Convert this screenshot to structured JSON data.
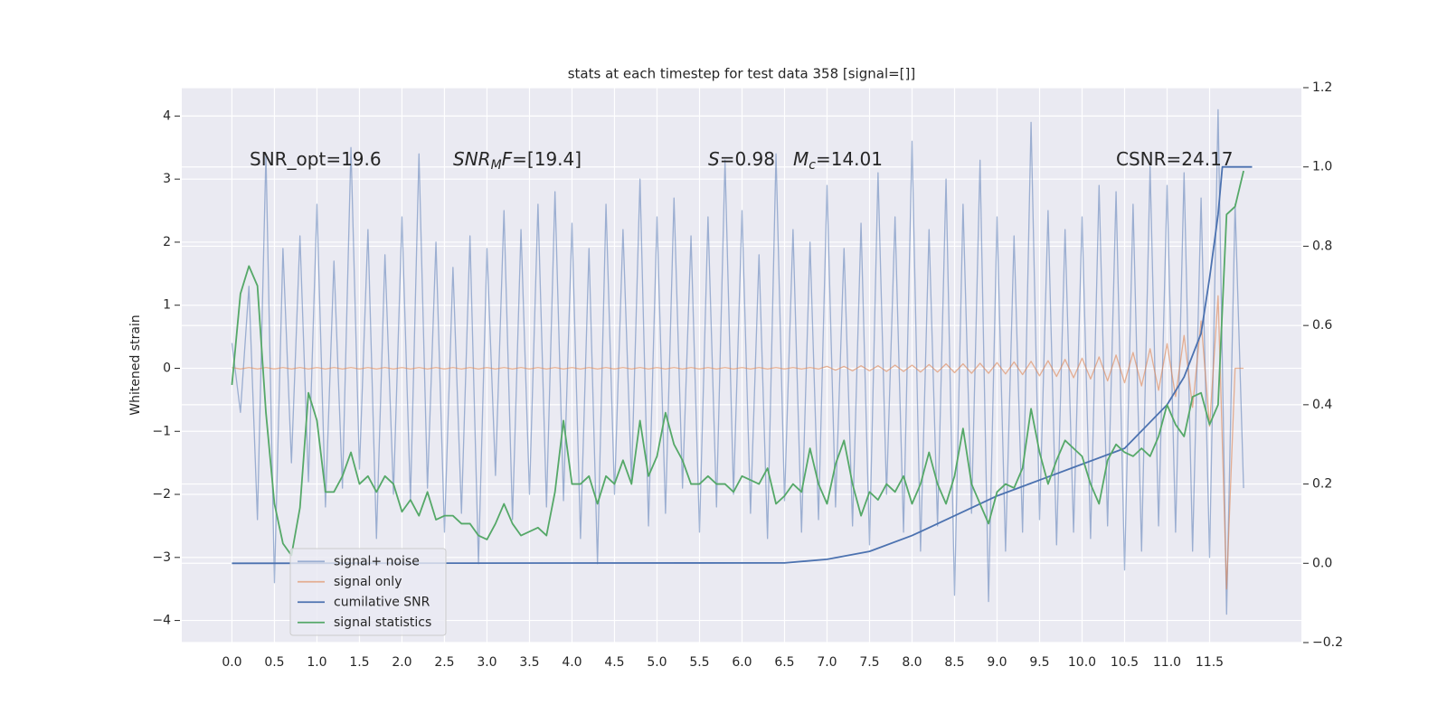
{
  "chart_data": {
    "type": "line",
    "title": "stats at each timestep for test data 358 [signal=[]]",
    "y_label": "Whitened strain",
    "xlim": [
      -0.59,
      12.58
    ],
    "ylim": [
      -4.35,
      4.45
    ],
    "y2lim": [
      -0.2,
      1.2
    ],
    "xticks": [
      {
        "value": 0,
        "label": "0.0"
      },
      0.5,
      {
        "value": 1,
        "label": "1.0"
      },
      1.5,
      {
        "value": 2,
        "label": "2.0"
      },
      2.5,
      {
        "value": 3,
        "label": "3.0"
      },
      3.5,
      {
        "value": 4,
        "label": "4.0"
      },
      4.5,
      {
        "value": 5,
        "label": "5.0"
      },
      5.5,
      {
        "value": 6,
        "label": "6.0"
      },
      6.5,
      {
        "value": 7,
        "label": "7.0"
      },
      7.5,
      {
        "value": 8,
        "label": "8.0"
      },
      8.5,
      {
        "value": 9,
        "label": "9.0"
      },
      9.5,
      {
        "value": 10,
        "label": "10.0"
      },
      10.5,
      {
        "value": 11,
        "label": "11.0"
      },
      11.5
    ],
    "yticks": [
      {
        "value": -4,
        "label": "−4"
      },
      {
        "value": -3,
        "label": "−3"
      },
      {
        "value": -2,
        "label": "−2"
      },
      {
        "value": -1,
        "label": "−1"
      },
      0,
      1,
      2,
      3,
      4
    ],
    "y2ticks": [
      {
        "value": -0.2,
        "label": "−0.2"
      },
      {
        "value": 0,
        "label": "0.0"
      },
      0.2,
      0.4,
      0.6,
      0.8,
      {
        "value": 1,
        "label": "1.0"
      },
      1.2
    ],
    "grid": true,
    "background": "#eaeaf2",
    "legend_loc": "lower left",
    "x": [
      0.0,
      0.1,
      0.2,
      0.3,
      0.4,
      0.5,
      0.6,
      0.7,
      0.8,
      0.9,
      1.0,
      1.1,
      1.2,
      1.3,
      1.4,
      1.5,
      1.6,
      1.7,
      1.8,
      1.9,
      2.0,
      2.1,
      2.2,
      2.3,
      2.4,
      2.5,
      2.6,
      2.7,
      2.8,
      2.9,
      3.0,
      3.1,
      3.2,
      3.3,
      3.4,
      3.5,
      3.6,
      3.7,
      3.8,
      3.9,
      4.0,
      4.1,
      4.2,
      4.3,
      4.4,
      4.5,
      4.6,
      4.7,
      4.8,
      4.9,
      5.0,
      5.1,
      5.2,
      5.3,
      5.4,
      5.5,
      5.6,
      5.7,
      5.8,
      5.9,
      6.0,
      6.1,
      6.2,
      6.3,
      6.4,
      6.5,
      6.6,
      6.7,
      6.8,
      6.9,
      7.0,
      7.1,
      7.2,
      7.3,
      7.4,
      7.5,
      7.6,
      7.7,
      7.8,
      7.9,
      8.0,
      8.1,
      8.2,
      8.3,
      8.4,
      8.5,
      8.6,
      8.7,
      8.8,
      8.9,
      9.0,
      9.1,
      9.2,
      9.3,
      9.4,
      9.5,
      9.6,
      9.7,
      9.8,
      9.9,
      10.0,
      10.1,
      10.2,
      10.3,
      10.4,
      10.5,
      10.6,
      10.7,
      10.8,
      10.9,
      11.0,
      11.1,
      11.2,
      11.3,
      11.4,
      11.5,
      11.6,
      11.7,
      11.8,
      11.9
    ],
    "series": [
      {
        "name": "signal+ noise",
        "color": "#4c72b0",
        "alpha": 0.5,
        "values": [
          0.4,
          -0.7,
          1.3,
          -2.4,
          3.4,
          -3.4,
          1.9,
          -1.5,
          2.1,
          -1.8,
          2.6,
          -2.2,
          1.7,
          -1.9,
          3.5,
          -1.6,
          2.2,
          -2.7,
          1.8,
          -2.0,
          2.4,
          -2.1,
          3.4,
          -1.9,
          2.0,
          -2.6,
          1.6,
          -2.3,
          2.1,
          -3.1,
          1.9,
          -1.7,
          2.5,
          -2.4,
          2.2,
          -2.0,
          2.6,
          -2.2,
          2.8,
          -2.1,
          2.3,
          -2.7,
          1.9,
          -3.1,
          2.6,
          -2.0,
          2.2,
          -1.8,
          3.0,
          -2.5,
          2.4,
          -2.3,
          2.7,
          -1.9,
          2.1,
          -2.6,
          2.4,
          -2.2,
          3.3,
          -2.0,
          2.5,
          -2.3,
          1.8,
          -2.7,
          3.4,
          -2.1,
          2.2,
          -2.6,
          2.0,
          -2.4,
          2.9,
          -2.2,
          1.9,
          -2.5,
          2.3,
          -2.8,
          3.1,
          -2.0,
          2.4,
          -2.6,
          3.6,
          -2.9,
          2.2,
          -2.5,
          3.0,
          -3.6,
          2.6,
          -2.3,
          3.3,
          -3.7,
          2.4,
          -2.9,
          2.1,
          -2.6,
          3.9,
          -2.4,
          2.5,
          -2.8,
          2.2,
          -2.6,
          2.4,
          -2.7,
          2.9,
          -2.5,
          2.8,
          -3.2,
          2.6,
          -2.9,
          3.2,
          -2.5,
          2.9,
          -2.6,
          3.1,
          -2.9,
          2.7,
          -3.0,
          4.1,
          -3.9,
          2.6,
          -1.9
        ]
      },
      {
        "name": "signal only",
        "color": "#dd8452",
        "alpha": 0.6,
        "values": [
          0.01,
          -0.01,
          0.01,
          -0.01,
          0.01,
          -0.01,
          0.01,
          -0.01,
          0.01,
          -0.01,
          0.01,
          -0.01,
          0.01,
          -0.01,
          0.01,
          -0.01,
          0.01,
          -0.01,
          0.01,
          -0.01,
          0.01,
          -0.01,
          0.01,
          -0.01,
          0.01,
          -0.01,
          0.01,
          -0.01,
          0.01,
          -0.01,
          0.01,
          -0.01,
          0.01,
          -0.01,
          0.01,
          -0.01,
          0.01,
          -0.01,
          0.01,
          -0.01,
          0.01,
          -0.01,
          0.01,
          -0.01,
          0.01,
          -0.01,
          0.01,
          -0.01,
          0.01,
          -0.01,
          0.01,
          -0.01,
          0.01,
          -0.01,
          0.01,
          -0.01,
          0.01,
          -0.01,
          0.01,
          -0.01,
          0.01,
          -0.01,
          0.01,
          -0.01,
          0.01,
          -0.01,
          0.01,
          -0.01,
          0.01,
          -0.01,
          0.03,
          -0.03,
          0.03,
          -0.04,
          0.04,
          -0.04,
          0.04,
          -0.05,
          0.05,
          -0.05,
          0.05,
          -0.06,
          0.06,
          -0.06,
          0.07,
          -0.07,
          0.07,
          -0.08,
          0.08,
          -0.08,
          0.09,
          -0.09,
          0.1,
          -0.1,
          0.11,
          -0.12,
          0.12,
          -0.13,
          0.14,
          -0.15,
          0.16,
          -0.17,
          0.18,
          -0.2,
          0.21,
          -0.23,
          0.25,
          -0.28,
          0.31,
          -0.35,
          0.39,
          -0.45,
          0.52,
          -0.62,
          0.75,
          -0.92,
          1.15,
          -3.5,
          0,
          0
        ]
      },
      {
        "name": "cumilative SNR",
        "color": "#4c72b0",
        "alpha": 1,
        "axis": "y2",
        "x": [
          0,
          6.5,
          7,
          7.5,
          8,
          8.5,
          9,
          9.5,
          10,
          10.5,
          11,
          11.2,
          11.4,
          11.5,
          11.6,
          11.65,
          12.0
        ],
        "values": [
          0,
          0.001,
          0.01,
          0.03,
          0.07,
          0.12,
          0.17,
          0.21,
          0.25,
          0.29,
          0.4,
          0.47,
          0.58,
          0.72,
          0.88,
          1.0,
          1.0
        ]
      },
      {
        "name": "signal statistics",
        "color": "#55a868",
        "alpha": 1,
        "axis": "y2",
        "values": [
          0.45,
          0.68,
          0.75,
          0.7,
          0.38,
          0.15,
          0.05,
          0.02,
          0.14,
          0.43,
          0.36,
          0.18,
          0.18,
          0.22,
          0.28,
          0.2,
          0.22,
          0.18,
          0.22,
          0.2,
          0.13,
          0.16,
          0.12,
          0.18,
          0.11,
          0.12,
          0.12,
          0.1,
          0.1,
          0.07,
          0.06,
          0.1,
          0.15,
          0.1,
          0.07,
          0.08,
          0.09,
          0.07,
          0.18,
          0.36,
          0.2,
          0.2,
          0.22,
          0.15,
          0.22,
          0.2,
          0.26,
          0.2,
          0.36,
          0.22,
          0.27,
          0.38,
          0.3,
          0.26,
          0.2,
          0.2,
          0.22,
          0.2,
          0.2,
          0.18,
          0.22,
          0.21,
          0.2,
          0.24,
          0.15,
          0.17,
          0.2,
          0.18,
          0.29,
          0.2,
          0.15,
          0.25,
          0.31,
          0.2,
          0.12,
          0.18,
          0.16,
          0.2,
          0.18,
          0.22,
          0.15,
          0.2,
          0.28,
          0.2,
          0.15,
          0.22,
          0.34,
          0.2,
          0.15,
          0.1,
          0.18,
          0.2,
          0.19,
          0.24,
          0.39,
          0.28,
          0.2,
          0.26,
          0.31,
          0.29,
          0.27,
          0.2,
          0.15,
          0.26,
          0.3,
          0.28,
          0.27,
          0.29,
          0.27,
          0.32,
          0.4,
          0.35,
          0.32,
          0.42,
          0.43,
          0.35,
          0.4,
          0.88,
          0.9,
          0.99
        ]
      }
    ],
    "annotations": [
      {
        "parts": [
          {
            "text": "SNR_opt=19.6"
          }
        ]
      },
      {
        "parts": [
          {
            "text": "SNR",
            "italic": true
          },
          {
            "text": "M",
            "italic": true,
            "sub": true
          },
          {
            "text": "F",
            "italic": true
          },
          {
            "text": "=[19.4]"
          }
        ]
      },
      {
        "parts": [
          {
            "text": "S",
            "italic": true
          },
          {
            "text": "=0.98"
          }
        ]
      },
      {
        "parts": [
          {
            "text": "M",
            "italic": true
          },
          {
            "text": "c",
            "italic": true,
            "sub": true
          },
          {
            "text": "=14.01"
          }
        ]
      },
      {
        "parts": [
          {
            "text": "CSNR=24.17"
          }
        ]
      }
    ]
  }
}
